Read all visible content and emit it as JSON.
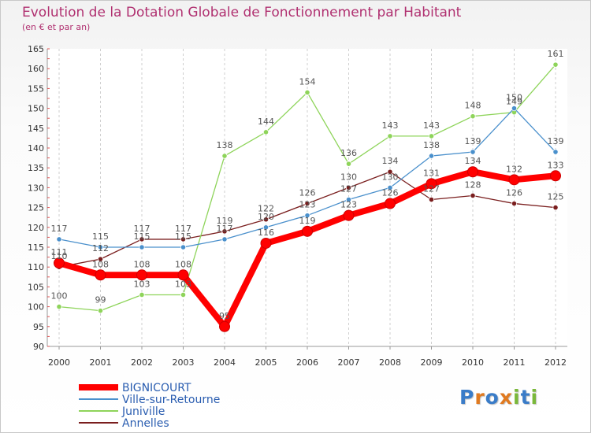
{
  "chart_data": {
    "type": "line",
    "title": "Evolution de la Dotation Globale de Fonctionnement par Habitant",
    "subtitle": "(en € et par an)",
    "xlabel": "",
    "ylabel": "",
    "ylim": [
      90,
      165
    ],
    "yticks": [
      90,
      95,
      100,
      105,
      110,
      115,
      120,
      125,
      130,
      135,
      140,
      145,
      150,
      155,
      160,
      165
    ],
    "categories": [
      "2000",
      "2001",
      "2002",
      "2003",
      "2004",
      "2005",
      "2006",
      "2007",
      "2008",
      "2009",
      "2010",
      "2011",
      "2012"
    ],
    "grid": "dashed-vertical",
    "legend_position": "bottom-left",
    "series": [
      {
        "name": "BIGNICOURT",
        "color": "#ff0000",
        "values": [
          111,
          108,
          108,
          108,
          95,
          116,
          119,
          123,
          126,
          131,
          134,
          132,
          133
        ]
      },
      {
        "name": "Ville-sur-Retourne",
        "color": "#4a90cc",
        "values": [
          117,
          115,
          115,
          115,
          117,
          120,
          123,
          127,
          130,
          138,
          139,
          150,
          139
        ]
      },
      {
        "name": "Juniville",
        "color": "#8ed45a",
        "values": [
          100,
          99,
          103,
          103,
          138,
          144,
          154,
          136,
          143,
          143,
          148,
          149,
          161
        ]
      },
      {
        "name": "Annelles",
        "color": "#7a1e1e",
        "values": [
          110,
          112,
          117,
          117,
          119,
          122,
          126,
          130,
          134,
          127,
          128,
          126,
          125
        ]
      }
    ]
  },
  "logo": {
    "text": "Proxiti"
  }
}
